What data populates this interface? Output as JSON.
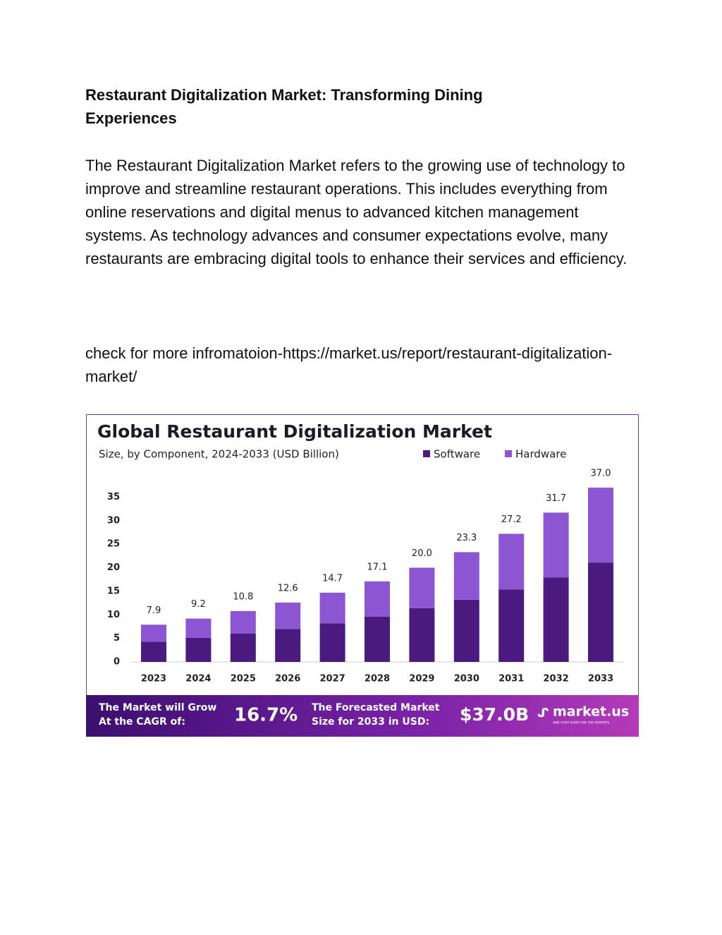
{
  "document": {
    "title": "Restaurant Digitalization Market: Transforming Dining Experiences",
    "paragraph": "The Restaurant Digitalization Market refers to the growing use of technology to improve and streamline restaurant operations. This includes everything from online reservations and digital menus to advanced kitchen management systems. As technology advances and consumer expectations evolve, many restaurants are embracing digital tools to enhance their services and efficiency.",
    "link_text": "check for more infromatoion-https://market.us/report/restaurant-digitalization-market/"
  },
  "chart_data": {
    "type": "stacked-bar",
    "title": "Global Restaurant Digitalization Market",
    "subtitle": "Size, by Component, 2024-2033 (USD Billion)",
    "categories": [
      "2023",
      "2024",
      "2025",
      "2026",
      "2027",
      "2028",
      "2029",
      "2030",
      "2031",
      "2032",
      "2033"
    ],
    "series": [
      {
        "name": "Software",
        "color": "#4b1a7e",
        "values": [
          4.3,
          5.1,
          6.0,
          7.0,
          8.2,
          9.6,
          11.4,
          13.2,
          15.4,
          17.9,
          21.1
        ]
      },
      {
        "name": "Hardware",
        "color": "#8c55d2",
        "values": [
          3.6,
          4.1,
          4.8,
          5.6,
          6.5,
          7.5,
          8.6,
          10.1,
          11.8,
          13.8,
          15.9
        ]
      }
    ],
    "totals": {
      "values": [
        7.9,
        9.2,
        10.8,
        12.6,
        14.7,
        17.1,
        20,
        23.3,
        27.2,
        31.7,
        37
      ],
      "value_labels": [
        "7.9",
        "9.2",
        "10.8",
        "12.6",
        "14.7",
        "17.1",
        "20.0",
        "23.3",
        "27.2",
        "31.7",
        "37.0"
      ]
    },
    "ylim": [
      0,
      40
    ],
    "yticks": [
      0,
      5,
      10,
      15,
      20,
      25,
      30,
      35
    ],
    "legend": "top-right",
    "footer": {
      "cagr_label": [
        "The Market will Grow",
        "At the CAGR of:"
      ],
      "cagr": "16.7%",
      "forecast_label": [
        "The Forecasted Market",
        "Size for 2033 in USD:"
      ],
      "forecast": "$37.0B",
      "brand": "market.us",
      "tagline": "ONE STOP SHOP FOR THE REPORTS"
    }
  }
}
